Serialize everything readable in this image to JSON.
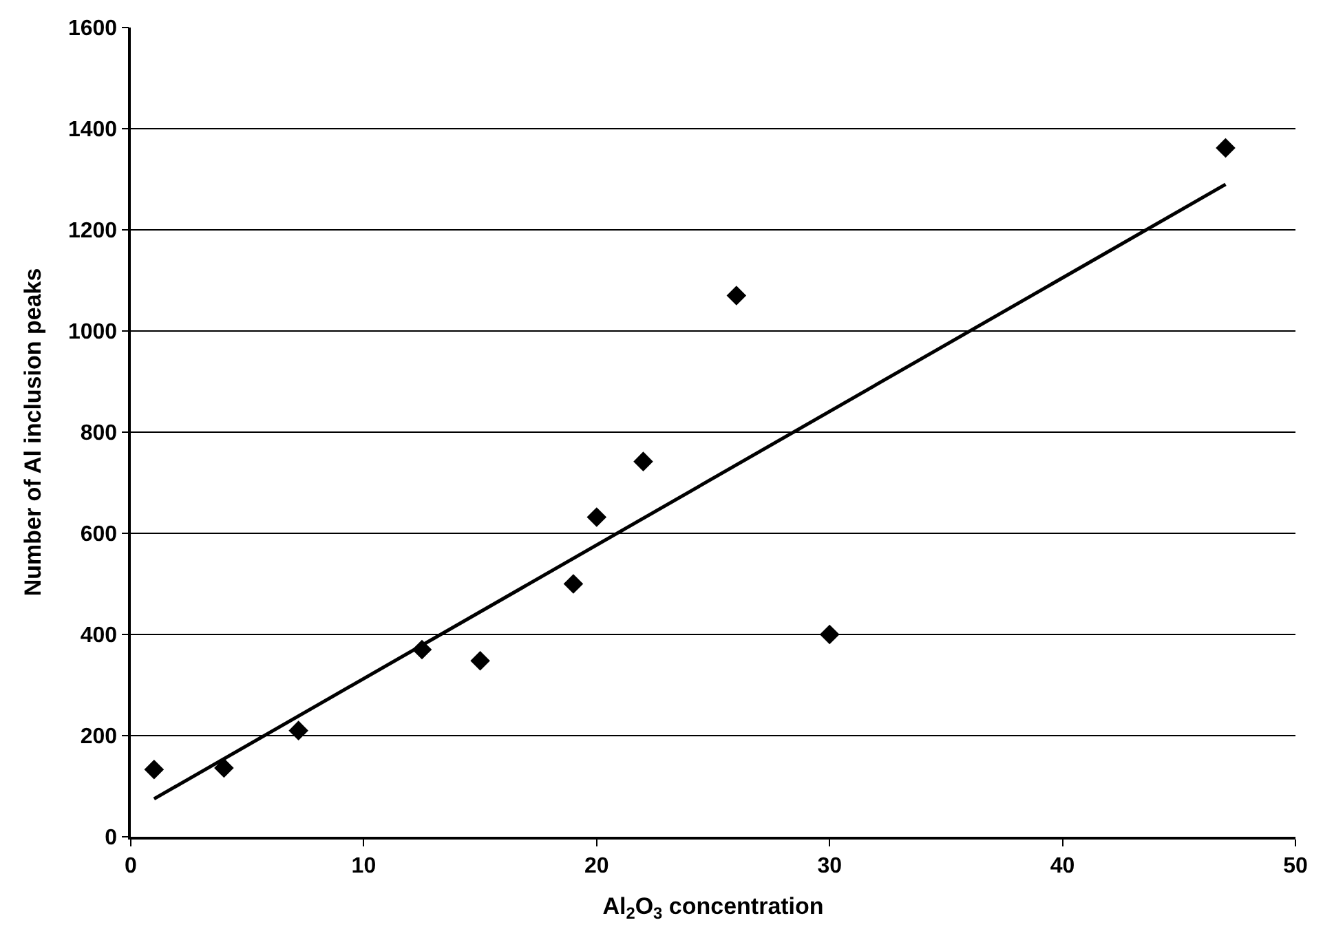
{
  "chart_data": {
    "type": "scatter",
    "xlabel": "Al$_{2}$O$_{3}$ concentration",
    "ylabel": "Number of Al inclusion peaks",
    "series": [
      {
        "color": "#000000",
        "marker": "diamond",
        "x": [
          1,
          4,
          7.2,
          12.5,
          15,
          19,
          20,
          22,
          26,
          30,
          47
        ],
        "values": [
          133,
          136,
          210,
          370,
          348,
          500,
          632,
          742,
          1070,
          400,
          1362
        ]
      },
      {
        "type": "line",
        "color": "#000000",
        "marker": "none",
        "line_style": "solid",
        "x": [
          1,
          47
        ],
        "values": [
          75,
          1290
        ]
      }
    ],
    "xlim": [
      0,
      50
    ],
    "xticks": [
      0,
      10,
      20,
      30,
      40,
      50
    ],
    "ylim": [
      0,
      1600
    ],
    "yticks": [
      0,
      200,
      400,
      600,
      800,
      1000,
      1200,
      1400,
      1600
    ],
    "grid": "y"
  }
}
